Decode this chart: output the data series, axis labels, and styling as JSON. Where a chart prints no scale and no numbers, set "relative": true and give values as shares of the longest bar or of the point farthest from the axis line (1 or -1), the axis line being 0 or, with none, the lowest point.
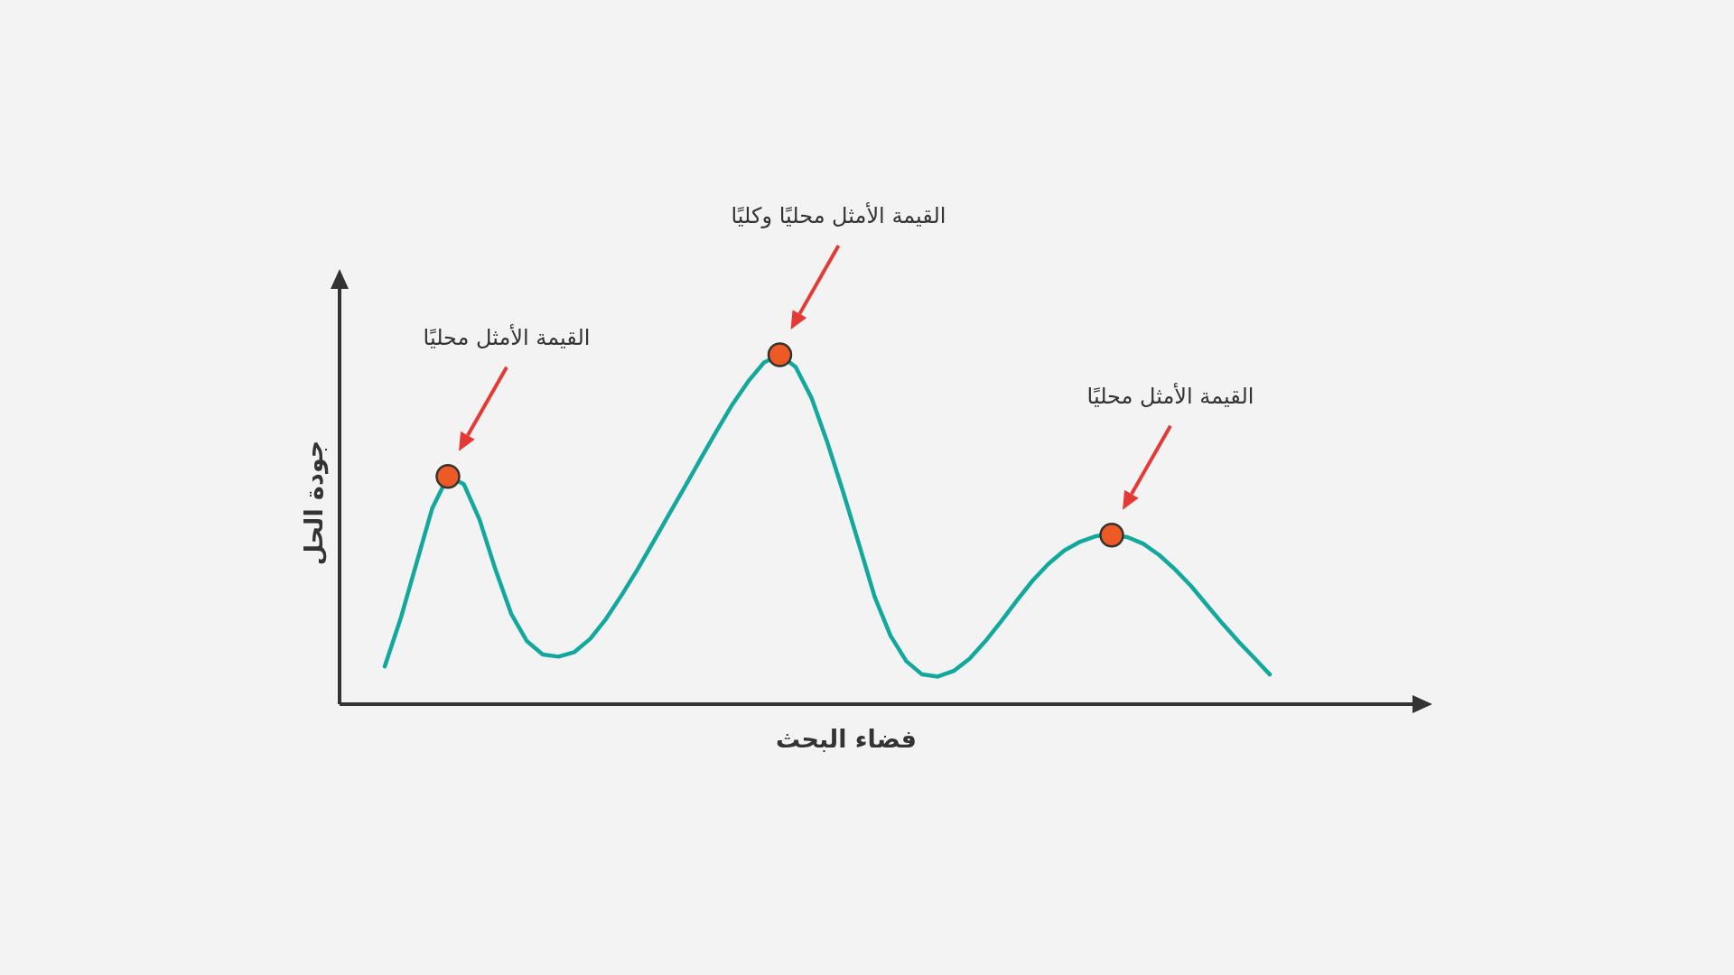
{
  "chart_data": {
    "type": "line",
    "relative": true,
    "xlabel": "فضاء البحث",
    "ylabel": "جودة الحل",
    "categories": [
      null,
      null,
      null,
      null,
      null,
      null,
      null,
      null,
      null,
      null,
      null,
      null,
      null,
      null,
      null,
      null,
      null,
      null,
      null,
      null,
      null,
      null,
      null,
      null,
      null,
      null,
      null,
      null,
      null,
      null,
      null,
      null,
      null,
      null,
      null,
      null,
      null,
      null,
      null,
      null,
      null,
      null,
      null,
      null,
      null,
      null,
      null,
      null,
      null,
      null,
      null,
      null,
      null,
      null,
      null,
      null,
      null
    ],
    "series": [
      {
        "color": "#13a89e",
        "values": [
          0.108,
          0.244,
          0.402,
          0.56,
          0.652,
          0.63,
          0.528,
          0.386,
          0.259,
          0.18,
          0.142,
          0.136,
          0.149,
          0.187,
          0.244,
          0.313,
          0.386,
          0.465,
          0.544,
          0.623,
          0.703,
          0.782,
          0.858,
          0.924,
          0.978,
          1.0,
          0.965,
          0.877,
          0.75,
          0.608,
          0.459,
          0.307,
          0.196,
          0.123,
          0.085,
          0.079,
          0.095,
          0.13,
          0.18,
          0.237,
          0.297,
          0.354,
          0.402,
          0.44,
          0.465,
          0.481,
          0.484,
          0.478,
          0.459,
          0.427,
          0.386,
          0.339,
          0.285,
          0.231,
          0.18,
          0.133,
          0.085
        ]
      }
    ],
    "annotations": [
      "القيمة الأمثل محليًا",
      "القيمة الأمثل محليًا وكليًا",
      "القيمة الأمثل محليًا"
    ]
  }
}
